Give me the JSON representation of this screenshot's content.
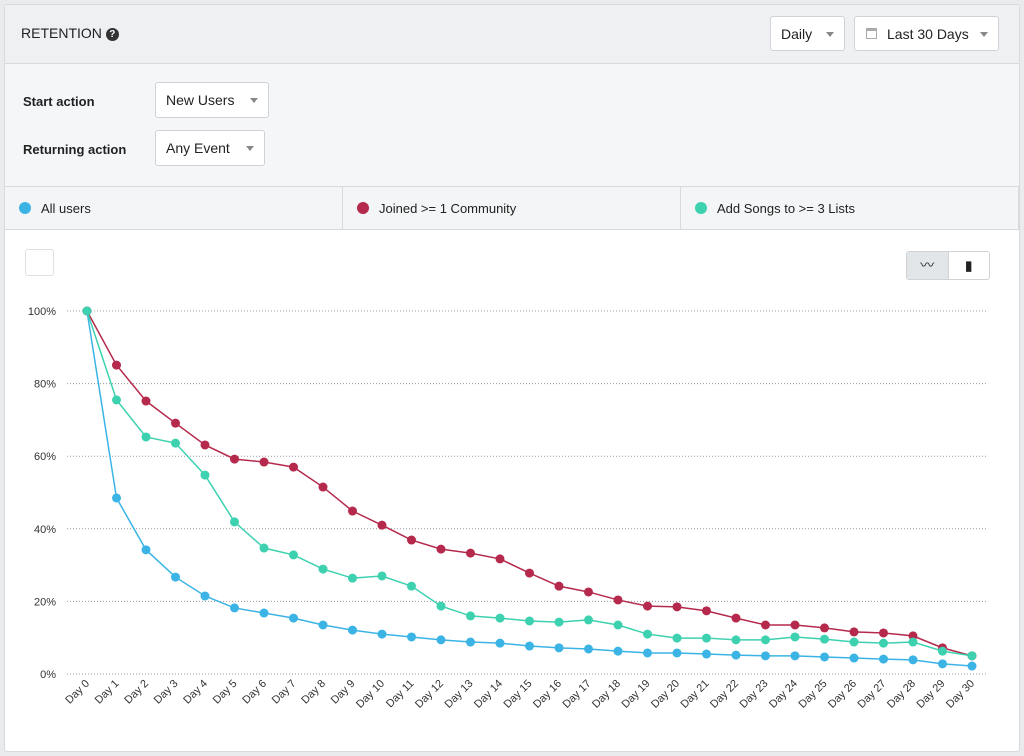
{
  "header": {
    "title": "RETENTION",
    "interval": "Daily",
    "range": "Last 30 Days"
  },
  "filters": [
    {
      "label": "Start action",
      "value": "New Users"
    },
    {
      "label": "Returning action",
      "value": "Any Event"
    }
  ],
  "chart_data": {
    "type": "line",
    "categories": [
      "Day 0",
      "Day 1",
      "Day 2",
      "Day 3",
      "Day 4",
      "Day 5",
      "Day 6",
      "Day 7",
      "Day 8",
      "Day 9",
      "Day 10",
      "Day 11",
      "Day 12",
      "Day 13",
      "Day 14",
      "Day 15",
      "Day 16",
      "Day 17",
      "Day 18",
      "Day 19",
      "Day 20",
      "Day 21",
      "Day 22",
      "Day 23",
      "Day 24",
      "Day 25",
      "Day 26",
      "Day 27",
      "Day 28",
      "Day 29",
      "Day 30"
    ],
    "series": [
      {
        "name": "All users",
        "color": "#3bb4e5",
        "values": [
          100,
          48.5,
          34.2,
          26.7,
          21.5,
          18.2,
          16.8,
          15.4,
          13.5,
          12.1,
          11.0,
          10.2,
          9.4,
          8.8,
          8.5,
          7.7,
          7.2,
          6.9,
          6.3,
          5.8,
          5.8,
          5.5,
          5.2,
          5.0,
          5.0,
          4.7,
          4.4,
          4.1,
          3.9,
          2.8,
          2.2
        ]
      },
      {
        "name": "Joined >= 1 Community",
        "color": "#b5294c",
        "values": [
          100,
          85.1,
          75.2,
          69.1,
          63.1,
          59.2,
          58.4,
          57.0,
          51.5,
          44.9,
          41.0,
          36.9,
          34.4,
          33.3,
          31.7,
          27.8,
          24.2,
          22.6,
          20.4,
          18.7,
          18.5,
          17.4,
          15.4,
          13.5,
          13.5,
          12.7,
          11.6,
          11.3,
          10.5,
          7.2,
          5.0
        ]
      },
      {
        "name": "Add Songs to >= 3 Lists",
        "color": "#3dd1b0",
        "values": [
          100,
          75.5,
          65.3,
          63.6,
          54.8,
          41.9,
          34.7,
          32.8,
          28.9,
          26.4,
          27.0,
          24.2,
          18.7,
          16.0,
          15.4,
          14.6,
          14.3,
          14.9,
          13.5,
          11.0,
          9.9,
          9.9,
          9.4,
          9.4,
          10.2,
          9.6,
          8.8,
          8.5,
          8.8,
          6.3,
          5.0
        ]
      }
    ],
    "ylim": [
      0,
      100
    ],
    "yticks": [
      {
        "value": 0,
        "label": "0%"
      },
      {
        "value": 20,
        "label": "20%"
      },
      {
        "value": 40,
        "label": "40%"
      },
      {
        "value": 60,
        "label": "60%"
      },
      {
        "value": 80,
        "label": "80%"
      },
      {
        "value": 100,
        "label": "100%"
      }
    ],
    "grid": true
  }
}
